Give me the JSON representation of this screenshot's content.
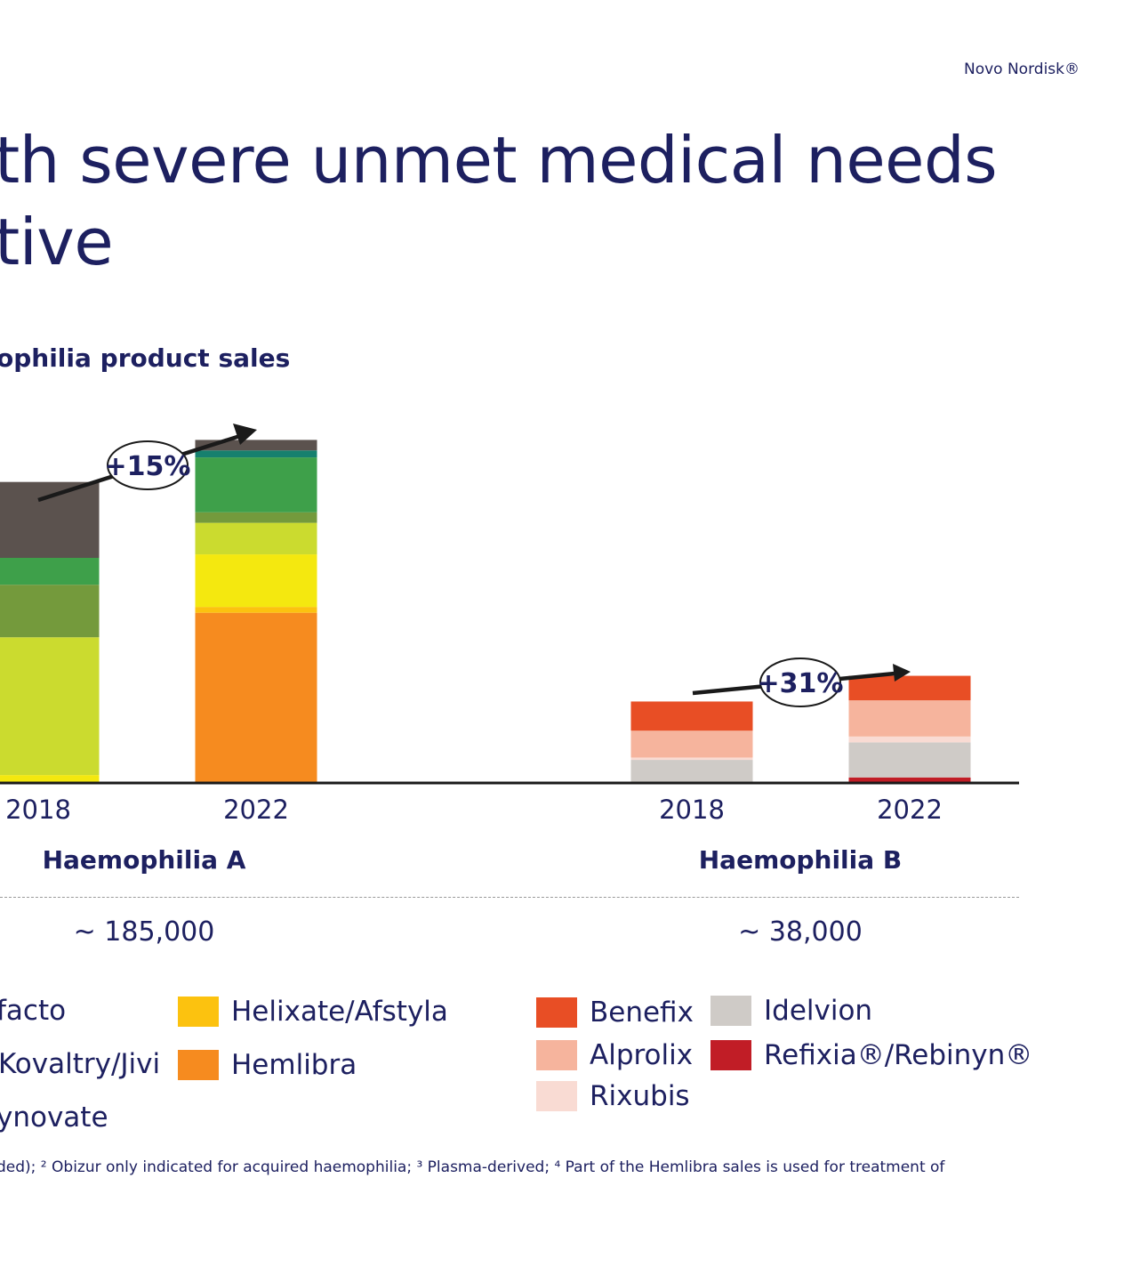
{
  "brand": "Novo Nordisk®",
  "title": {
    "line1": "th severe unmet medical needs",
    "line2": "tive"
  },
  "subtitle": "ophilia product sales",
  "groups": [
    {
      "label": "Haemophilia A",
      "patients": "~ 185,000",
      "growth": "+15%"
    },
    {
      "label": "Haemophilia B",
      "patients": "~ 38,000",
      "growth": "+31%"
    }
  ],
  "chart_data": {
    "type": "bar",
    "stacked": true,
    "categories": [
      "2018",
      "2022",
      "2018",
      "2022"
    ],
    "groups": [
      "Haemophilia A",
      "Haemophilia A",
      "Haemophilia B",
      "Haemophilia B"
    ],
    "ylim": [
      0,
      320
    ],
    "series": [
      {
        "name": "Hemlibra",
        "color": "#f68b1f",
        "values": [
          0,
          145,
          0,
          0
        ]
      },
      {
        "name": "Helixate/Afstyla",
        "color": "#fcc20f",
        "values": [
          0,
          5,
          0,
          0
        ]
      },
      {
        "name": "",
        "color": "#f4e80f",
        "values": [
          6,
          45,
          0,
          0
        ]
      },
      {
        "name": "",
        "color": "#cbdb2f",
        "values": [
          118,
          27,
          0,
          0
        ]
      },
      {
        "name": "",
        "color": "#749a3c",
        "values": [
          45,
          9,
          0,
          0
        ]
      },
      {
        "name": "",
        "color": "#3ea04a",
        "values": [
          23,
          47,
          0,
          0
        ]
      },
      {
        "name": "",
        "color": "#16806e",
        "values": [
          0,
          6,
          0,
          0
        ]
      },
      {
        "name": "",
        "color": "#5b524e",
        "values": [
          65,
          9,
          0,
          0
        ]
      },
      {
        "name": "Refixia®/Rebinyn®",
        "color": "#c11d26",
        "values": [
          0,
          0,
          0,
          4
        ]
      },
      {
        "name": "Idelvion",
        "color": "#cfcbc7",
        "values": [
          0,
          0,
          19,
          30
        ]
      },
      {
        "name": "Rixubis",
        "color": "#f9dbd3",
        "values": [
          0,
          0,
          2,
          5
        ]
      },
      {
        "name": "Alprolix",
        "color": "#f6b49d",
        "values": [
          0,
          0,
          23,
          31
        ]
      },
      {
        "name": "Benefix",
        "color": "#e84e25",
        "values": [
          0,
          0,
          25,
          21
        ]
      }
    ],
    "annotations": [
      "+15%",
      "+31%"
    ]
  },
  "legend": {
    "a_col1": [
      "facto",
      "Kovaltry/Jivi",
      "ynovate"
    ],
    "a_col2": [
      {
        "label": "Helixate/Afstyla",
        "color": "#fcc20f"
      },
      {
        "label": "Hemlibra",
        "color": "#f68b1f"
      }
    ],
    "b_col1": [
      {
        "label": "Benefix",
        "color": "#e84e25"
      },
      {
        "label": "Alprolix",
        "color": "#f6b49d"
      },
      {
        "label": "Rixubis",
        "color": "#f9dbd3"
      }
    ],
    "b_col2": [
      {
        "label": "Idelvion",
        "color": "#cfcbc7"
      },
      {
        "label": "Refixia®/Rebinyn®",
        "color": "#c11d26"
      }
    ]
  },
  "footnote": "ded); ² Obizur only indicated for acquired haemophilia; ³ Plasma-derived; ⁴ Part of the Hemlibra sales is used for treatment of"
}
